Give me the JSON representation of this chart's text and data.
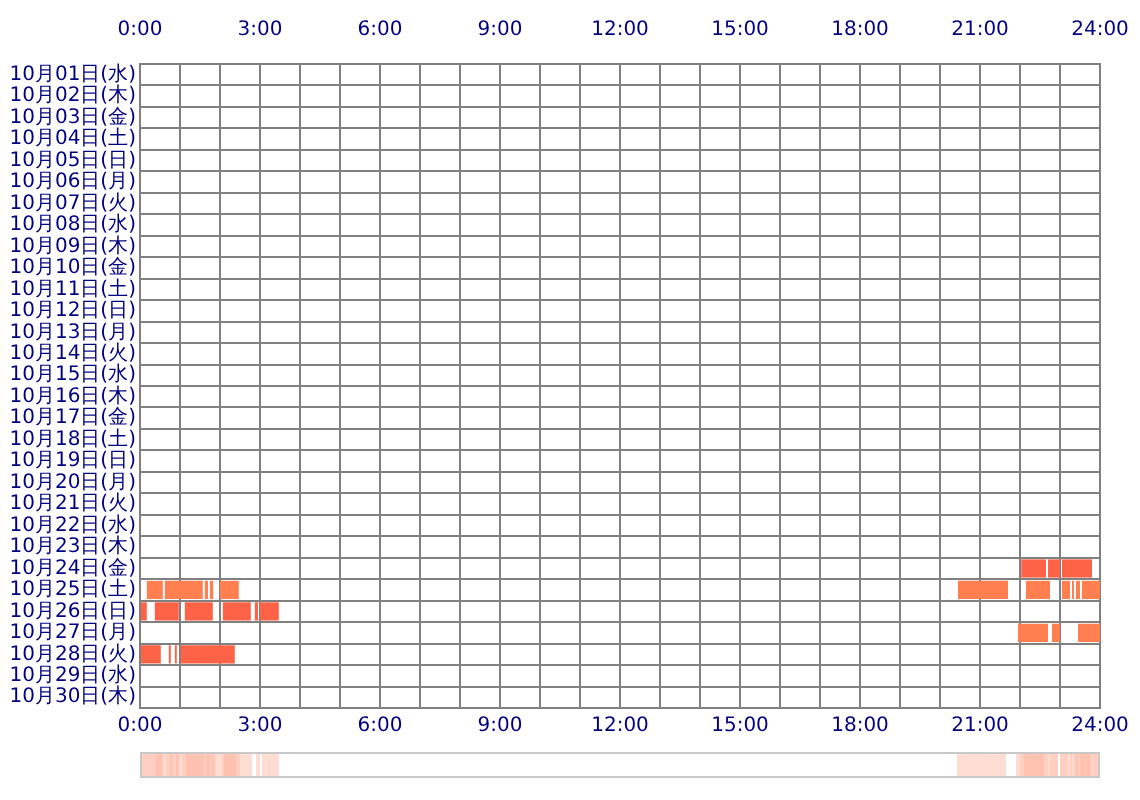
{
  "chart_data": {
    "type": "bar",
    "orientation": "horizontal",
    "legend": false,
    "grid": true,
    "categories": [
      "10月01日(水)",
      "10月02日(木)",
      "10月03日(金)",
      "10月04日(土)",
      "10月05日(日)",
      "10月06日(月)",
      "10月07日(火)",
      "10月08日(水)",
      "10月09日(木)",
      "10月10日(金)",
      "10月11日(土)",
      "10月12日(日)",
      "10月13日(月)",
      "10月14日(火)",
      "10月15日(水)",
      "10月16日(木)",
      "10月17日(金)",
      "10月18日(土)",
      "10月19日(日)",
      "10月20日(月)",
      "10月21日(火)",
      "10月22日(水)",
      "10月23日(木)",
      "10月24日(金)",
      "10月25日(土)",
      "10月26日(日)",
      "10月27日(月)",
      "10月28日(火)",
      "10月29日(水)",
      "10月30日(木)"
    ],
    "xlim": [
      0,
      24
    ],
    "xticks": [
      {
        "value": 0,
        "label": "0:00"
      },
      {
        "value": 1,
        "label": null
      },
      {
        "value": 2,
        "label": null
      },
      {
        "value": 3,
        "label": "3:00"
      },
      {
        "value": 4,
        "label": null
      },
      {
        "value": 5,
        "label": null
      },
      {
        "value": 6,
        "label": "6:00"
      },
      {
        "value": 7,
        "label": null
      },
      {
        "value": 8,
        "label": null
      },
      {
        "value": 9,
        "label": "9:00"
      },
      {
        "value": 10,
        "label": null
      },
      {
        "value": 11,
        "label": null
      },
      {
        "value": 12,
        "label": "12:00"
      },
      {
        "value": 13,
        "label": null
      },
      {
        "value": 14,
        "label": null
      },
      {
        "value": 15,
        "label": "15:00"
      },
      {
        "value": 16,
        "label": null
      },
      {
        "value": 17,
        "label": null
      },
      {
        "value": 18,
        "label": "18:00"
      },
      {
        "value": 19,
        "label": null
      },
      {
        "value": 20,
        "label": null
      },
      {
        "value": 21,
        "label": "21:00"
      },
      {
        "value": 22,
        "label": null
      },
      {
        "value": 23,
        "label": null
      },
      {
        "value": 24,
        "label": "24:00"
      }
    ],
    "x2lim": [
      0,
      24
    ],
    "x2ticks": [
      {
        "value": 0,
        "label": "0:00"
      },
      {
        "value": 3,
        "label": "3:00"
      },
      {
        "value": 6,
        "label": "6:00"
      },
      {
        "value": 9,
        "label": "9:00"
      },
      {
        "value": 12,
        "label": "12:00"
      },
      {
        "value": 15,
        "label": "15:00"
      },
      {
        "value": 18,
        "label": "18:00"
      },
      {
        "value": 21,
        "label": "21:00"
      },
      {
        "value": 24,
        "label": "24:00"
      }
    ],
    "series": [
      {
        "color": "#ff6347",
        "base": [
          null,
          null,
          null,
          null,
          null,
          null,
          null,
          null,
          null,
          null,
          null,
          null,
          null,
          null,
          null,
          null,
          null,
          null,
          null,
          null,
          null,
          null,
          null,
          22.03,
          null,
          0,
          null,
          0,
          null,
          null
        ],
        "values": [
          null,
          null,
          null,
          null,
          null,
          null,
          null,
          null,
          null,
          null,
          null,
          null,
          null,
          null,
          null,
          null,
          null,
          null,
          null,
          null,
          null,
          null,
          null,
          0.62,
          null,
          0.17,
          null,
          0.52,
          null,
          null
        ]
      },
      {
        "color": "#ff6347",
        "base": [
          null,
          null,
          null,
          null,
          null,
          null,
          null,
          null,
          null,
          null,
          null,
          null,
          null,
          null,
          null,
          null,
          null,
          null,
          null,
          null,
          null,
          null,
          null,
          22.7,
          null,
          0.37,
          null,
          0.72,
          null,
          null
        ],
        "values": [
          null,
          null,
          null,
          null,
          null,
          null,
          null,
          null,
          null,
          null,
          null,
          null,
          null,
          null,
          null,
          null,
          null,
          null,
          null,
          null,
          null,
          null,
          null,
          0.3,
          null,
          0.6,
          null,
          0.05,
          null,
          null
        ]
      },
      {
        "color": "#ff6347",
        "base": [
          null,
          null,
          null,
          null,
          null,
          null,
          null,
          null,
          null,
          null,
          null,
          null,
          null,
          null,
          null,
          null,
          null,
          null,
          null,
          null,
          null,
          null,
          null,
          23.05,
          null,
          1.12,
          null,
          0.87,
          null,
          null
        ],
        "values": [
          null,
          null,
          null,
          null,
          null,
          null,
          null,
          null,
          null,
          null,
          null,
          null,
          null,
          null,
          null,
          null,
          null,
          null,
          null,
          null,
          null,
          null,
          null,
          0.75,
          null,
          0.7,
          null,
          0.05,
          null,
          null
        ]
      },
      {
        "color": "#ff6347",
        "base": [
          null,
          null,
          null,
          null,
          null,
          null,
          null,
          null,
          null,
          null,
          null,
          null,
          null,
          null,
          null,
          null,
          null,
          null,
          null,
          null,
          null,
          null,
          null,
          null,
          null,
          2.07,
          null,
          1.02,
          null,
          null
        ],
        "values": [
          null,
          null,
          null,
          null,
          null,
          null,
          null,
          null,
          null,
          null,
          null,
          null,
          null,
          null,
          null,
          null,
          null,
          null,
          null,
          null,
          null,
          null,
          null,
          null,
          null,
          0.7,
          null,
          1.35,
          null,
          null
        ]
      },
      {
        "color": "#ff6347",
        "base": [
          null,
          null,
          null,
          null,
          null,
          null,
          null,
          null,
          null,
          null,
          null,
          null,
          null,
          null,
          null,
          null,
          null,
          null,
          null,
          null,
          null,
          null,
          null,
          null,
          null,
          2.87,
          null,
          null,
          null,
          null
        ],
        "values": [
          null,
          null,
          null,
          null,
          null,
          null,
          null,
          null,
          null,
          null,
          null,
          null,
          null,
          null,
          null,
          null,
          null,
          null,
          null,
          null,
          null,
          null,
          null,
          null,
          null,
          0.08,
          null,
          null,
          null,
          null
        ]
      },
      {
        "color": "#ff6347",
        "base": [
          null,
          null,
          null,
          null,
          null,
          null,
          null,
          null,
          null,
          null,
          null,
          null,
          null,
          null,
          null,
          null,
          null,
          null,
          null,
          null,
          null,
          null,
          null,
          null,
          null,
          3.0,
          null,
          null,
          null,
          null
        ],
        "values": [
          null,
          null,
          null,
          null,
          null,
          null,
          null,
          null,
          null,
          null,
          null,
          null,
          null,
          null,
          null,
          null,
          null,
          null,
          null,
          null,
          null,
          null,
          null,
          null,
          null,
          0.47,
          null,
          null,
          null,
          null
        ]
      },
      {
        "color": "#ff7f50",
        "base": [
          null,
          null,
          null,
          null,
          null,
          null,
          null,
          null,
          null,
          null,
          null,
          null,
          null,
          null,
          null,
          null,
          null,
          null,
          null,
          null,
          null,
          null,
          null,
          null,
          0.17,
          null,
          21.95,
          null,
          null,
          null
        ],
        "values": [
          null,
          null,
          null,
          null,
          null,
          null,
          null,
          null,
          null,
          null,
          null,
          null,
          null,
          null,
          null,
          null,
          null,
          null,
          null,
          null,
          null,
          null,
          null,
          null,
          0.4,
          null,
          0.75,
          null,
          null,
          null
        ]
      },
      {
        "color": "#ff7f50",
        "base": [
          null,
          null,
          null,
          null,
          null,
          null,
          null,
          null,
          null,
          null,
          null,
          null,
          null,
          null,
          null,
          null,
          null,
          null,
          null,
          null,
          null,
          null,
          null,
          null,
          0.62,
          null,
          22.8,
          null,
          null,
          null
        ],
        "values": [
          null,
          null,
          null,
          null,
          null,
          null,
          null,
          null,
          null,
          null,
          null,
          null,
          null,
          null,
          null,
          null,
          null,
          null,
          null,
          null,
          null,
          null,
          null,
          null,
          0.95,
          null,
          0.2,
          null,
          null,
          null
        ]
      },
      {
        "color": "#ff7f50",
        "base": [
          null,
          null,
          null,
          null,
          null,
          null,
          null,
          null,
          null,
          null,
          null,
          null,
          null,
          null,
          null,
          null,
          null,
          null,
          null,
          null,
          null,
          null,
          null,
          null,
          1.62,
          null,
          23.45,
          null,
          null,
          null
        ],
        "values": [
          null,
          null,
          null,
          null,
          null,
          null,
          null,
          null,
          null,
          null,
          null,
          null,
          null,
          null,
          null,
          null,
          null,
          null,
          null,
          null,
          null,
          null,
          null,
          null,
          0.08,
          null,
          0.55,
          null,
          null,
          null
        ]
      },
      {
        "color": "#ff7f50",
        "base": [
          null,
          null,
          null,
          null,
          null,
          null,
          null,
          null,
          null,
          null,
          null,
          null,
          null,
          null,
          null,
          null,
          null,
          null,
          null,
          null,
          null,
          null,
          null,
          null,
          1.75,
          null,
          null,
          null,
          null,
          null
        ],
        "values": [
          null,
          null,
          null,
          null,
          null,
          null,
          null,
          null,
          null,
          null,
          null,
          null,
          null,
          null,
          null,
          null,
          null,
          null,
          null,
          null,
          null,
          null,
          null,
          null,
          0.08,
          null,
          null,
          null,
          null,
          null
        ]
      },
      {
        "color": "#ff7f50",
        "base": [
          null,
          null,
          null,
          null,
          null,
          null,
          null,
          null,
          null,
          null,
          null,
          null,
          null,
          null,
          null,
          null,
          null,
          null,
          null,
          null,
          null,
          null,
          null,
          null,
          2.0,
          null,
          null,
          null,
          null,
          null
        ],
        "values": [
          null,
          null,
          null,
          null,
          null,
          null,
          null,
          null,
          null,
          null,
          null,
          null,
          null,
          null,
          null,
          null,
          null,
          null,
          null,
          null,
          null,
          null,
          null,
          null,
          0.47,
          null,
          null,
          null,
          null,
          null
        ]
      },
      {
        "color": "#ff7f50",
        "base": [
          null,
          null,
          null,
          null,
          null,
          null,
          null,
          null,
          null,
          null,
          null,
          null,
          null,
          null,
          null,
          null,
          null,
          null,
          null,
          null,
          null,
          null,
          null,
          null,
          20.45,
          null,
          null,
          null,
          null,
          null
        ],
        "values": [
          null,
          null,
          null,
          null,
          null,
          null,
          null,
          null,
          null,
          null,
          null,
          null,
          null,
          null,
          null,
          null,
          null,
          null,
          null,
          null,
          null,
          null,
          null,
          null,
          1.25,
          null,
          null,
          null,
          null,
          null
        ]
      },
      {
        "color": "#ff7f50",
        "base": [
          null,
          null,
          null,
          null,
          null,
          null,
          null,
          null,
          null,
          null,
          null,
          null,
          null,
          null,
          null,
          null,
          null,
          null,
          null,
          null,
          null,
          null,
          null,
          null,
          22.15,
          null,
          null,
          null,
          null,
          null
        ],
        "values": [
          null,
          null,
          null,
          null,
          null,
          null,
          null,
          null,
          null,
          null,
          null,
          null,
          null,
          null,
          null,
          null,
          null,
          null,
          null,
          null,
          null,
          null,
          null,
          null,
          0.6,
          null,
          null,
          null,
          null,
          null
        ]
      },
      {
        "color": "#ff7f50",
        "base": [
          null,
          null,
          null,
          null,
          null,
          null,
          null,
          null,
          null,
          null,
          null,
          null,
          null,
          null,
          null,
          null,
          null,
          null,
          null,
          null,
          null,
          null,
          null,
          null,
          23.05,
          null,
          null,
          null,
          null,
          null
        ],
        "values": [
          null,
          null,
          null,
          null,
          null,
          null,
          null,
          null,
          null,
          null,
          null,
          null,
          null,
          null,
          null,
          null,
          null,
          null,
          null,
          null,
          null,
          null,
          null,
          null,
          0.2,
          null,
          null,
          null,
          null,
          null
        ]
      },
      {
        "color": "#ff7f50",
        "base": [
          null,
          null,
          null,
          null,
          null,
          null,
          null,
          null,
          null,
          null,
          null,
          null,
          null,
          null,
          null,
          null,
          null,
          null,
          null,
          null,
          null,
          null,
          null,
          null,
          23.3,
          null,
          null,
          null,
          null,
          null
        ],
        "values": [
          null,
          null,
          null,
          null,
          null,
          null,
          null,
          null,
          null,
          null,
          null,
          null,
          null,
          null,
          null,
          null,
          null,
          null,
          null,
          null,
          null,
          null,
          null,
          null,
          0.05,
          null,
          null,
          null,
          null,
          null
        ]
      },
      {
        "color": "#ff7f50",
        "base": [
          null,
          null,
          null,
          null,
          null,
          null,
          null,
          null,
          null,
          null,
          null,
          null,
          null,
          null,
          null,
          null,
          null,
          null,
          null,
          null,
          null,
          null,
          null,
          null,
          23.4,
          null,
          null,
          null,
          null,
          null
        ],
        "values": [
          null,
          null,
          null,
          null,
          null,
          null,
          null,
          null,
          null,
          null,
          null,
          null,
          null,
          null,
          null,
          null,
          null,
          null,
          null,
          null,
          null,
          null,
          null,
          null,
          0.1,
          null,
          null,
          null,
          null,
          null
        ]
      },
      {
        "color": "#ff7f50",
        "base": [
          null,
          null,
          null,
          null,
          null,
          null,
          null,
          null,
          null,
          null,
          null,
          null,
          null,
          null,
          null,
          null,
          null,
          null,
          null,
          null,
          null,
          null,
          null,
          null,
          23.55,
          null,
          null,
          null,
          null,
          null
        ],
        "values": [
          null,
          null,
          null,
          null,
          null,
          null,
          null,
          null,
          null,
          null,
          null,
          null,
          null,
          null,
          null,
          null,
          null,
          null,
          null,
          null,
          null,
          null,
          null,
          null,
          0.45,
          null,
          null,
          null,
          null,
          null
        ]
      }
    ]
  }
}
